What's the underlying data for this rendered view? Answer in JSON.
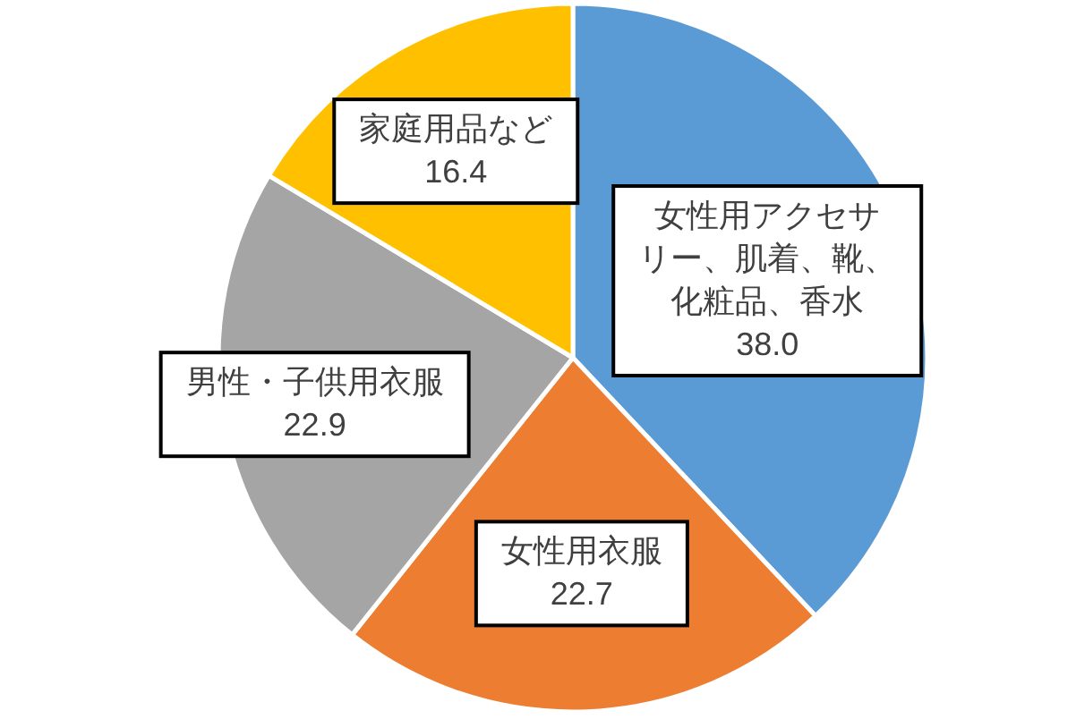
{
  "chart_data": {
    "type": "pie",
    "categories": [
      "女性用アクセサリー、肌着、靴、化粧品、香水",
      "女性用衣服",
      "男性・子供用衣服",
      "家庭用品など"
    ],
    "values": [
      38.0,
      22.7,
      22.9,
      16.4
    ],
    "value_labels": [
      "38.0",
      "22.7",
      "22.9",
      "16.4"
    ],
    "colors": [
      "#5b9bd5",
      "#ed7d31",
      "#a5a5a5",
      "#ffc000"
    ]
  }
}
